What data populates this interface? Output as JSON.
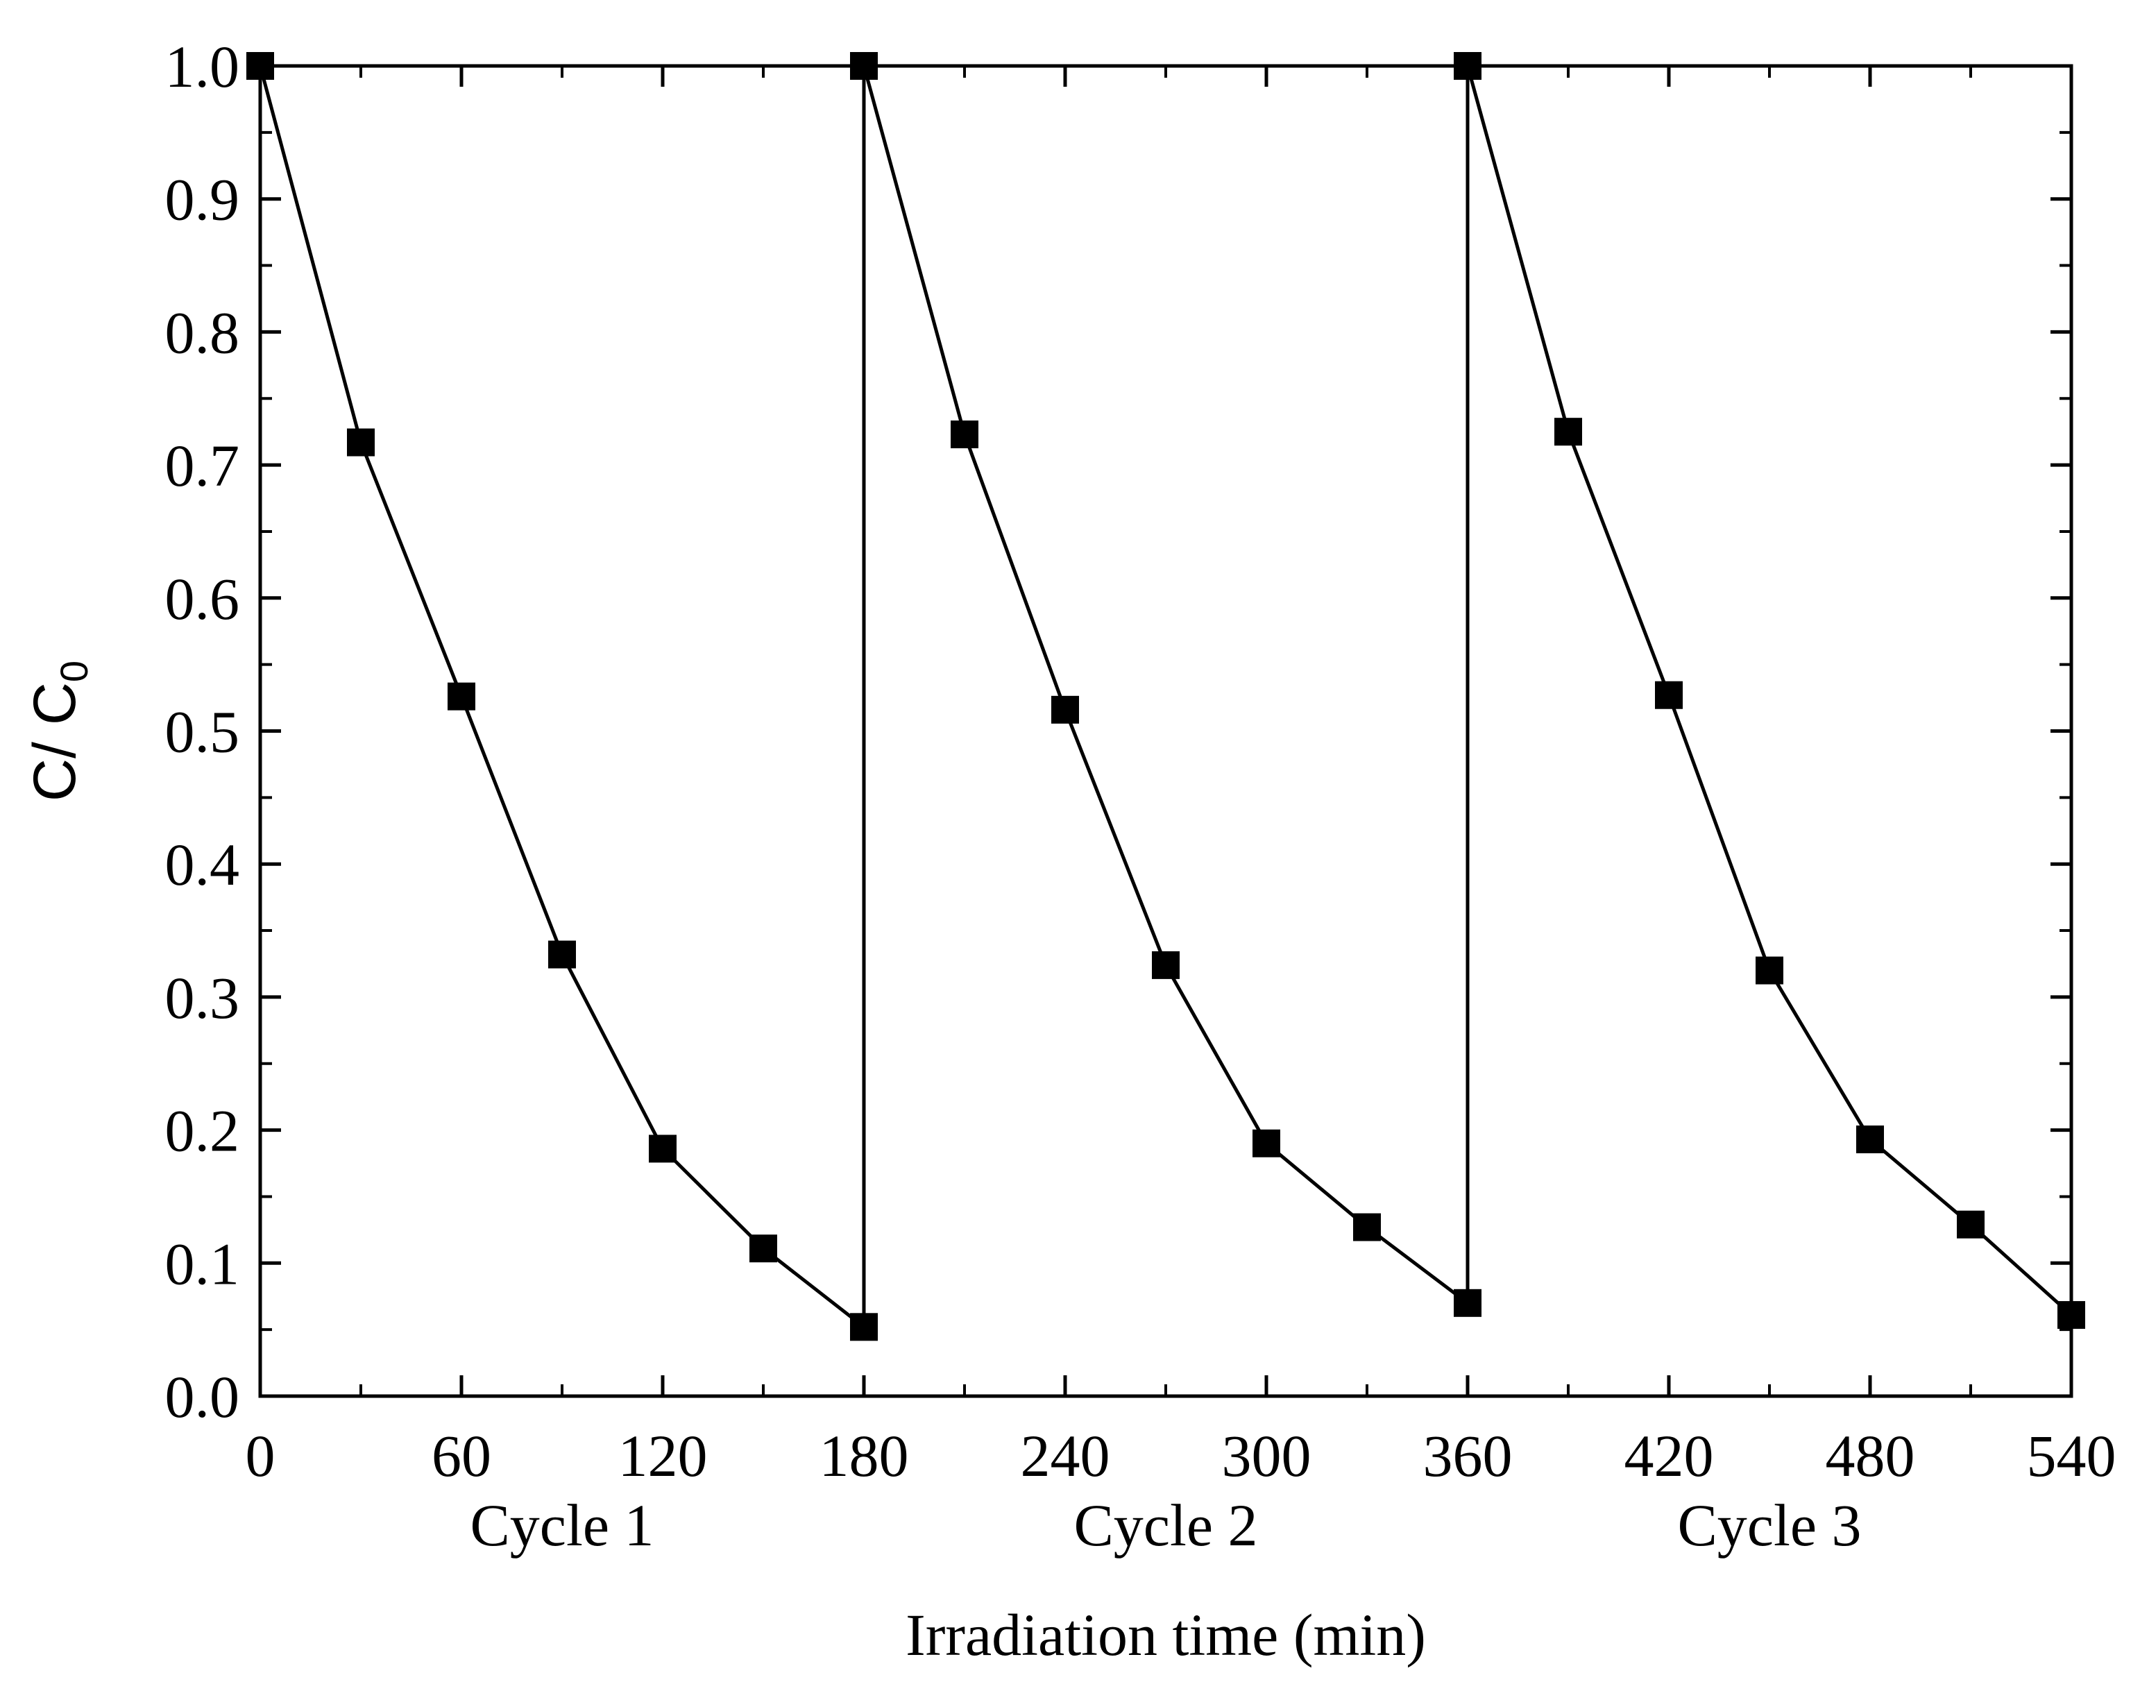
{
  "chart_data": {
    "type": "line",
    "title": "",
    "xlabel": "Irradiation time (min)",
    "ylabel": "C/ C",
    "ylabel_subscript": "0",
    "xlim": [
      0,
      540
    ],
    "ylim": [
      0.0,
      1.0
    ],
    "x_ticks": [
      0,
      60,
      120,
      180,
      240,
      300,
      360,
      420,
      480,
      540
    ],
    "x_tick_labels": [
      "0",
      "60",
      "120",
      "180",
      "240",
      "300",
      "360",
      "420",
      "480",
      "540"
    ],
    "y_ticks": [
      0.0,
      0.1,
      0.2,
      0.3,
      0.4,
      0.5,
      0.6,
      0.7,
      0.8,
      0.9,
      1.0
    ],
    "y_tick_labels": [
      "0.0",
      "0.1",
      "0.2",
      "0.3",
      "0.4",
      "0.5",
      "0.6",
      "0.7",
      "0.8",
      "0.9",
      "1.0"
    ],
    "cycles": [
      {
        "label": "Cycle 1",
        "x_start": 0,
        "x_end": 180
      },
      {
        "label": "Cycle 2",
        "x_start": 180,
        "x_end": 360
      },
      {
        "label": "Cycle 3",
        "x_start": 360,
        "x_end": 540
      }
    ],
    "series": [
      {
        "name": "C/C0",
        "marker": "square",
        "color": "#000000",
        "x": [
          0,
          30,
          60,
          90,
          120,
          150,
          180,
          180,
          210,
          240,
          270,
          300,
          330,
          360,
          360,
          390,
          420,
          450,
          480,
          510,
          540
        ],
        "y": [
          1.0,
          0.717,
          0.526,
          0.332,
          0.186,
          0.111,
          0.052,
          1.0,
          0.723,
          0.516,
          0.324,
          0.19,
          0.127,
          0.07,
          1.0,
          0.725,
          0.527,
          0.32,
          0.193,
          0.129,
          0.061
        ]
      }
    ],
    "grid": false,
    "legend": "none"
  }
}
